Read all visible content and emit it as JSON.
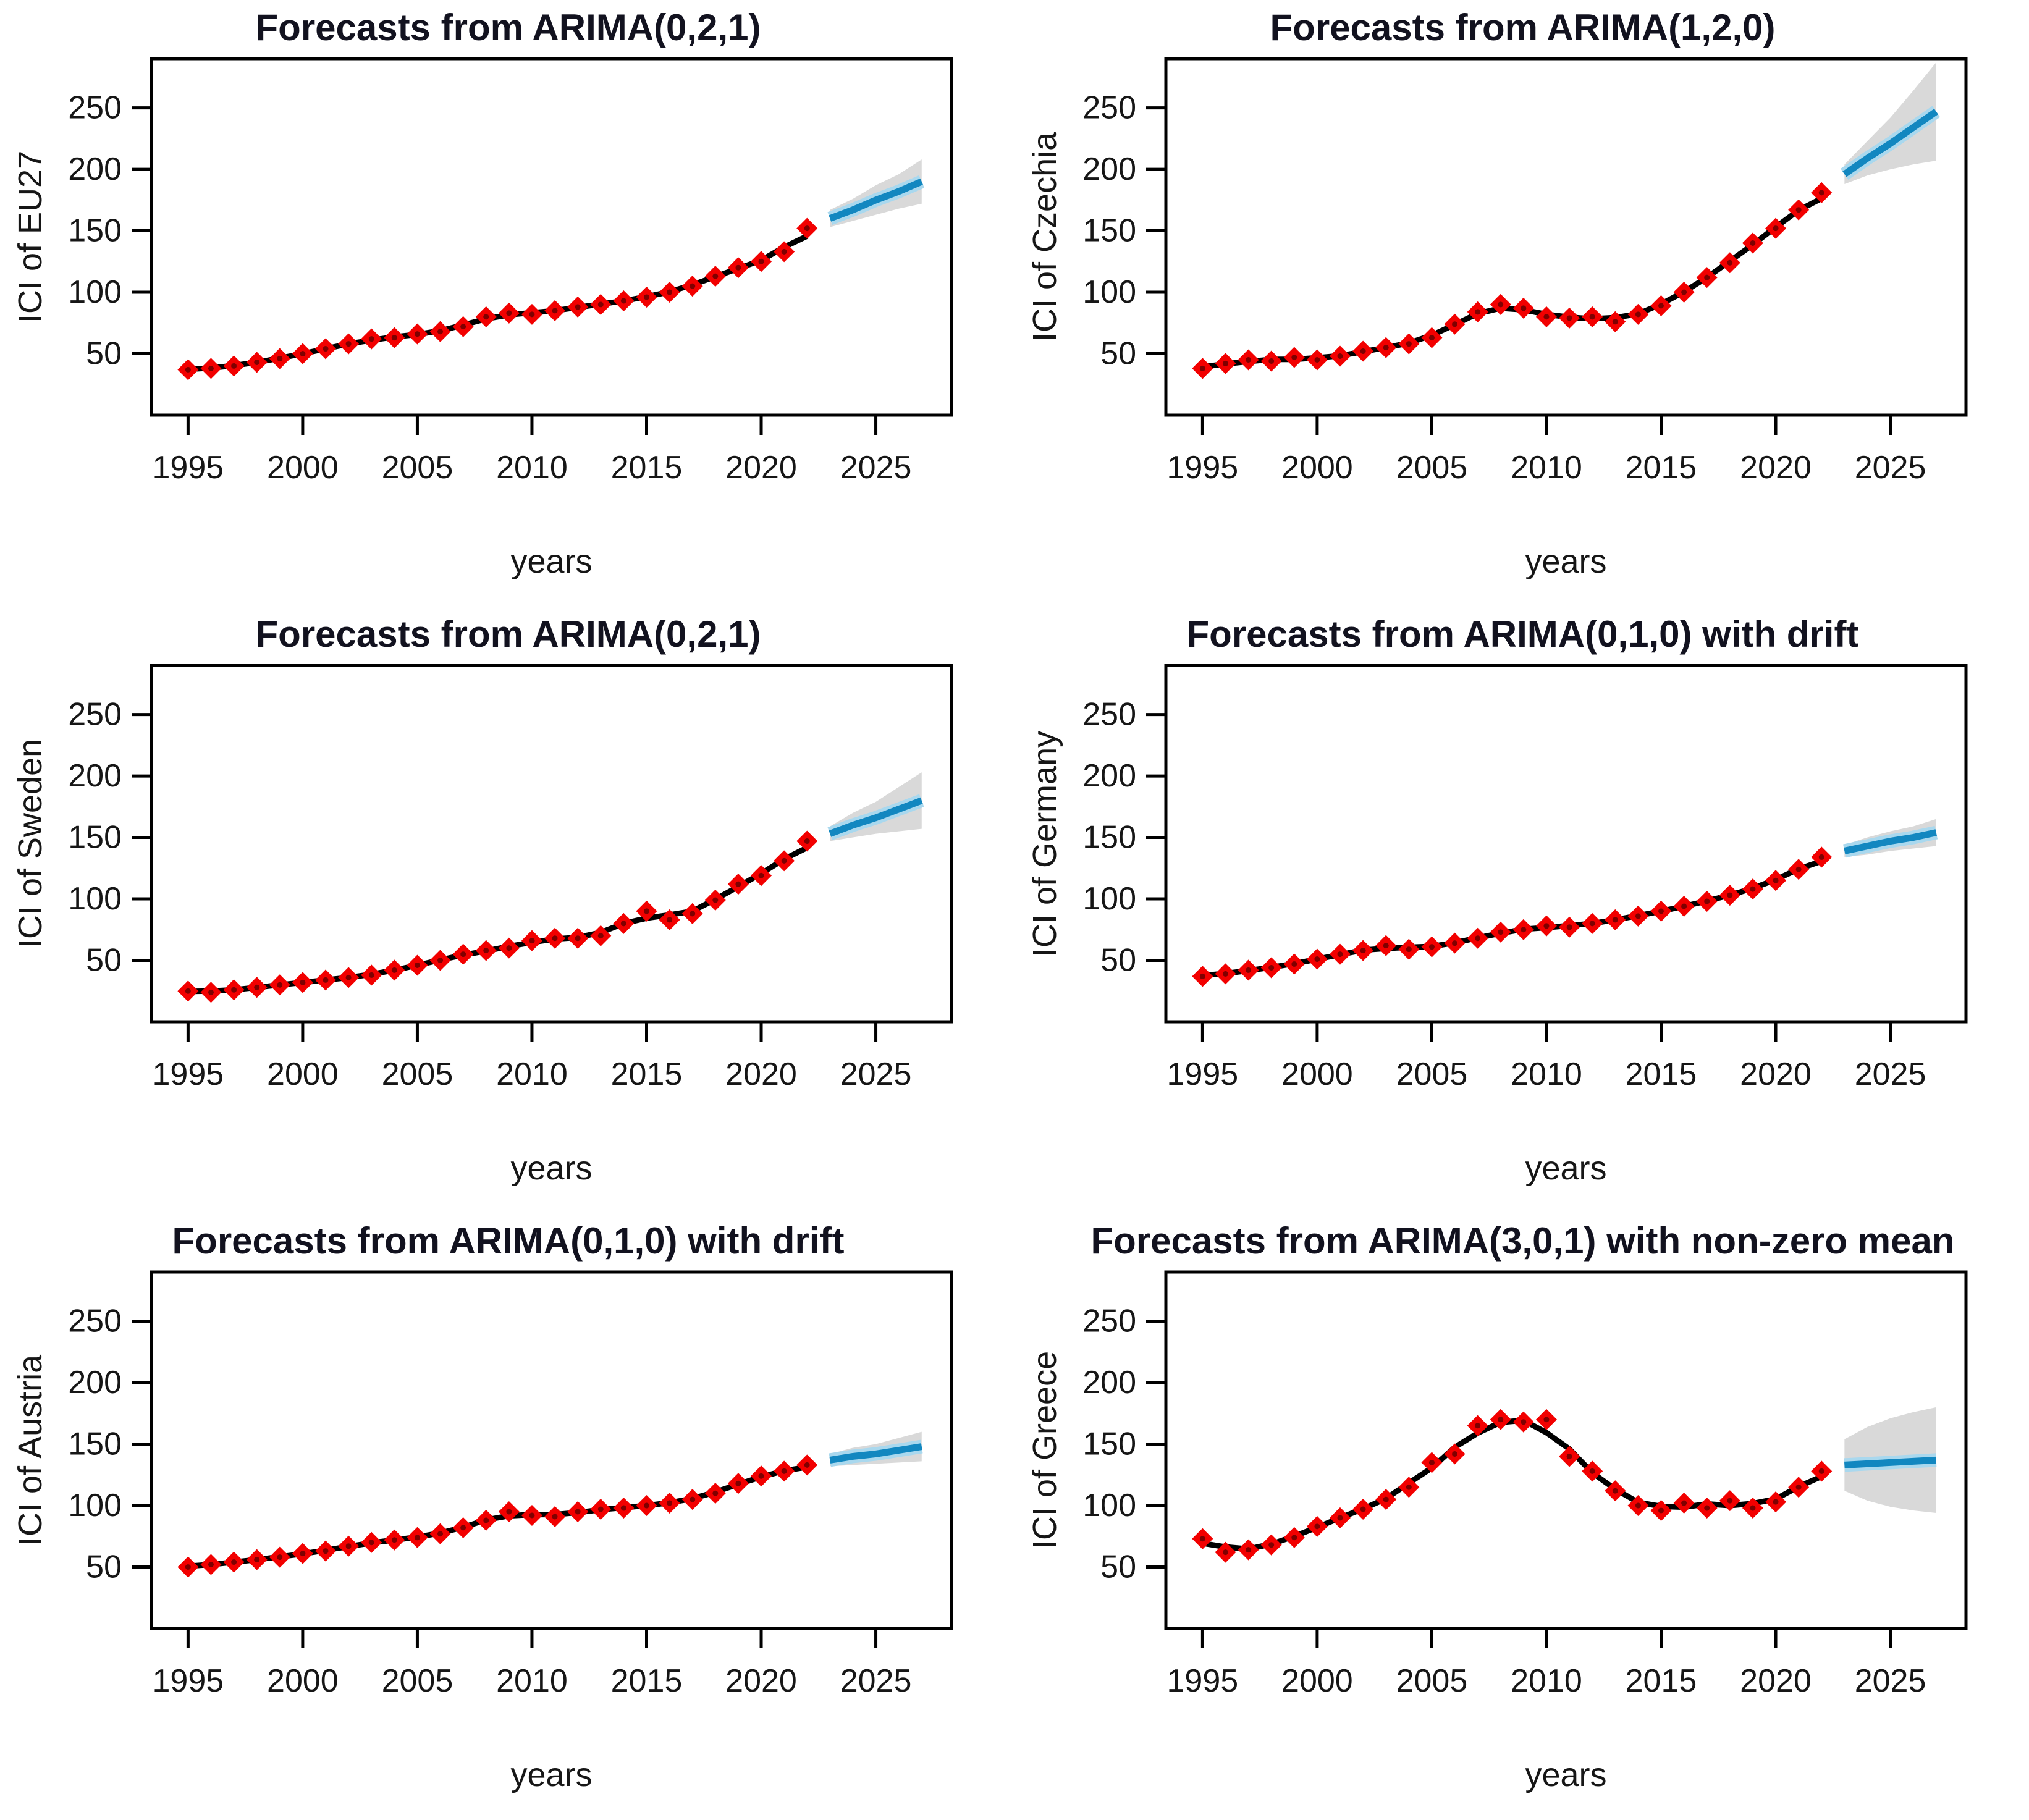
{
  "colors": {
    "history_point": "#f20000",
    "history_point_core": "#7f0000",
    "fitted_line": "#000000",
    "forecast_line": "#1287c0",
    "forecast_halo": "#a9d8ee",
    "ci_band": "#d9d9d9",
    "axis": "#000000",
    "text": "#161616"
  },
  "axis": {
    "x_label": "years",
    "x_ticks": [
      1995,
      2000,
      2005,
      2010,
      2015,
      2020,
      2025
    ],
    "y_ticks": [
      50,
      100,
      150,
      200,
      250
    ],
    "x_range": [
      1993.4,
      2028.3
    ],
    "y_range": [
      0,
      290
    ],
    "grid": "off",
    "legend": "none"
  },
  "chart_data": [
    {
      "type": "line",
      "title": "Forecasts from ARIMA(0,2,1)",
      "ylabel": "ICI of EU27",
      "xlabel": "years",
      "years": [
        1995,
        1996,
        1997,
        1998,
        1999,
        2000,
        2001,
        2002,
        2003,
        2004,
        2005,
        2006,
        2007,
        2008,
        2009,
        2010,
        2011,
        2012,
        2013,
        2014,
        2015,
        2016,
        2017,
        2018,
        2019,
        2020,
        2021,
        2022
      ],
      "values": [
        37,
        38,
        40,
        43,
        46,
        50,
        54,
        58,
        62,
        63,
        66,
        68,
        72,
        80,
        83,
        82,
        85,
        88,
        90,
        93,
        96,
        100,
        105,
        113,
        120,
        125,
        133,
        152
      ],
      "forecast_years": [
        2023,
        2024,
        2025,
        2026,
        2027
      ],
      "forecast_mean": [
        160,
        167,
        175,
        182,
        190
      ],
      "ci_lower": [
        153,
        158,
        163,
        168,
        172
      ],
      "ci_upper": [
        167,
        176,
        187,
        196,
        208
      ]
    },
    {
      "type": "line",
      "title": "Forecasts from ARIMA(1,2,0)",
      "ylabel": "ICI of Czechia",
      "xlabel": "years",
      "years": [
        1995,
        1996,
        1997,
        1998,
        1999,
        2000,
        2001,
        2002,
        2003,
        2004,
        2005,
        2006,
        2007,
        2008,
        2009,
        2010,
        2011,
        2012,
        2013,
        2014,
        2015,
        2016,
        2017,
        2018,
        2019,
        2020,
        2021,
        2022
      ],
      "values": [
        38,
        42,
        45,
        44,
        47,
        45,
        48,
        52,
        55,
        58,
        63,
        74,
        84,
        90,
        87,
        80,
        79,
        80,
        76,
        82,
        89,
        100,
        112,
        124,
        140,
        152,
        167,
        181
      ],
      "forecast_years": [
        2023,
        2024,
        2025,
        2026,
        2027
      ],
      "forecast_mean": [
        196,
        209,
        221,
        234,
        247
      ],
      "ci_lower": [
        188,
        195,
        200,
        204,
        207
      ],
      "ci_upper": [
        204,
        223,
        242,
        264,
        287
      ]
    },
    {
      "type": "line",
      "title": "Forecasts from ARIMA(0,2,1)",
      "ylabel": "ICI of Sweden",
      "xlabel": "years",
      "years": [
        1995,
        1996,
        1997,
        1998,
        1999,
        2000,
        2001,
        2002,
        2003,
        2004,
        2005,
        2006,
        2007,
        2008,
        2009,
        2010,
        2011,
        2012,
        2013,
        2014,
        2015,
        2016,
        2017,
        2018,
        2019,
        2020,
        2021,
        2022
      ],
      "values": [
        25,
        24,
        26,
        28,
        30,
        32,
        34,
        36,
        38,
        42,
        46,
        50,
        55,
        58,
        60,
        66,
        68,
        68,
        70,
        80,
        90,
        83,
        88,
        99,
        112,
        119,
        131,
        147
      ],
      "forecast_years": [
        2023,
        2024,
        2025,
        2026,
        2027
      ],
      "forecast_mean": [
        153,
        160,
        166,
        173,
        180
      ],
      "ci_lower": [
        147,
        150,
        153,
        155,
        157
      ],
      "ci_upper": [
        159,
        170,
        179,
        191,
        203
      ]
    },
    {
      "type": "line",
      "title": "Forecasts from ARIMA(0,1,0) with drift",
      "ylabel": "ICI of Germany",
      "xlabel": "years",
      "years": [
        1995,
        1996,
        1997,
        1998,
        1999,
        2000,
        2001,
        2002,
        2003,
        2004,
        2005,
        2006,
        2007,
        2008,
        2009,
        2010,
        2011,
        2012,
        2013,
        2014,
        2015,
        2016,
        2017,
        2018,
        2019,
        2020,
        2021,
        2022
      ],
      "values": [
        37,
        39,
        42,
        44,
        47,
        51,
        55,
        58,
        62,
        59,
        61,
        64,
        68,
        73,
        75,
        78,
        77,
        80,
        83,
        86,
        90,
        94,
        98,
        103,
        108,
        115,
        124,
        134
      ],
      "forecast_years": [
        2023,
        2024,
        2025,
        2026,
        2027
      ],
      "forecast_mean": [
        139,
        143,
        147,
        150,
        154
      ],
      "ci_lower": [
        134,
        136,
        139,
        141,
        143
      ],
      "ci_upper": [
        144,
        150,
        155,
        159,
        165
      ]
    },
    {
      "type": "line",
      "title": "Forecasts from ARIMA(0,1,0) with drift",
      "ylabel": "ICI of Austria",
      "xlabel": "years",
      "years": [
        1995,
        1996,
        1997,
        1998,
        1999,
        2000,
        2001,
        2002,
        2003,
        2004,
        2005,
        2006,
        2007,
        2008,
        2009,
        2010,
        2011,
        2012,
        2013,
        2014,
        2015,
        2016,
        2017,
        2018,
        2019,
        2020,
        2021,
        2022
      ],
      "values": [
        50,
        52,
        54,
        56,
        58,
        61,
        63,
        67,
        70,
        72,
        74,
        77,
        82,
        88,
        95,
        92,
        91,
        95,
        97,
        98,
        100,
        102,
        105,
        110,
        118,
        124,
        128,
        133
      ],
      "forecast_years": [
        2023,
        2024,
        2025,
        2026,
        2027
      ],
      "forecast_mean": [
        137,
        140,
        142,
        145,
        148
      ],
      "ci_lower": [
        132,
        133,
        134,
        135,
        136
      ],
      "ci_upper": [
        142,
        147,
        150,
        155,
        160
      ]
    },
    {
      "type": "line",
      "title": "Forecasts from ARIMA(3,0,1) with non-zero mean",
      "ylabel": "ICI of Greece",
      "xlabel": "years",
      "years": [
        1995,
        1996,
        1997,
        1998,
        1999,
        2000,
        2001,
        2002,
        2003,
        2004,
        2005,
        2006,
        2007,
        2008,
        2009,
        2010,
        2011,
        2012,
        2013,
        2014,
        2015,
        2016,
        2017,
        2018,
        2019,
        2020,
        2021,
        2022
      ],
      "values": [
        73,
        62,
        64,
        68,
        74,
        83,
        90,
        97,
        105,
        115,
        135,
        142,
        165,
        170,
        168,
        170,
        140,
        128,
        112,
        100,
        96,
        102,
        98,
        104,
        98,
        103,
        115,
        128
      ],
      "forecast_years": [
        2023,
        2024,
        2025,
        2026,
        2027
      ],
      "forecast_mean": [
        133,
        134,
        135,
        136,
        137
      ],
      "ci_lower": [
        112,
        104,
        99,
        96,
        94
      ],
      "ci_upper": [
        154,
        164,
        171,
        176,
        180
      ]
    }
  ]
}
